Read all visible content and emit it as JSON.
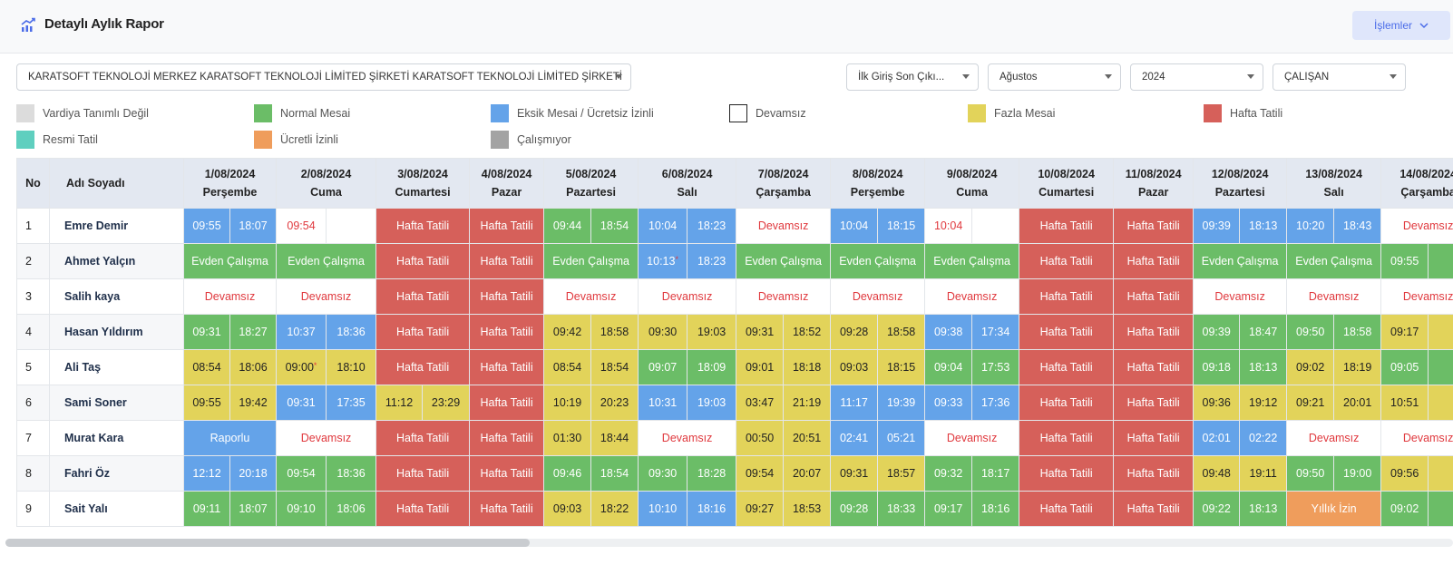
{
  "header": {
    "title": "Detaylı Aylık Rapor",
    "title_icon": "chart-line-icon",
    "actions_label": "İşlemler"
  },
  "filters": {
    "company": "KARATSOFT TEKNOLOJİ MERKEZ KARATSOFT TEKNOLOJİ LİMİTED ŞİRKETİ KARATSOFT TEKNOLOJİ LİMİTED ŞİRKETİ",
    "report_type": "İlk Giriş Son Çıkı...",
    "month": "Ağustos",
    "year": "2024",
    "employee_type": "ÇALIŞAN"
  },
  "legend": [
    {
      "label": "Vardiya Tanımlı Değil",
      "color": "#dcdcdc"
    },
    {
      "label": "Normal Mesai",
      "color": "#6bbd67"
    },
    {
      "label": "Eksik Mesai / Ücretsiz İzinli",
      "color": "#64a3e9"
    },
    {
      "label": "Devamsız",
      "color": "#ffffff"
    },
    {
      "label": "Fazla Mesai",
      "color": "#e2d35a"
    },
    {
      "label": "Hafta Tatili",
      "color": "#d6605a"
    },
    {
      "label": "Resmi Tatil",
      "color": "#5fcfbf"
    },
    {
      "label": "Ücretli İzinli",
      "color": "#ef9d5c"
    },
    {
      "label": "Çalışmıyor",
      "color": "#a3a3a3"
    }
  ],
  "table": {
    "col_no": "No",
    "col_name": "Adı Soyadı",
    "days": [
      {
        "date": "1/08/2024",
        "day": "Perşembe"
      },
      {
        "date": "2/08/2024",
        "day": "Cuma"
      },
      {
        "date": "3/08/2024",
        "day": "Cumartesi"
      },
      {
        "date": "4/08/2024",
        "day": "Pazar"
      },
      {
        "date": "5/08/2024",
        "day": "Pazartesi"
      },
      {
        "date": "6/08/2024",
        "day": "Salı"
      },
      {
        "date": "7/08/2024",
        "day": "Çarşamba"
      },
      {
        "date": "8/08/2024",
        "day": "Perşembe"
      },
      {
        "date": "9/08/2024",
        "day": "Cuma"
      },
      {
        "date": "10/08/2024",
        "day": "Cumartesi"
      },
      {
        "date": "11/08/2024",
        "day": "Pazar"
      },
      {
        "date": "12/08/2024",
        "day": "Pazartesi"
      },
      {
        "date": "13/08/2024",
        "day": "Salı"
      },
      {
        "date": "14/08/2024",
        "day": "Çarşamba"
      }
    ],
    "rows": [
      {
        "no": "1",
        "name": "Emre Demir",
        "cells": [
          {
            "s": "blue",
            "in": "09:55",
            "out": "18:07"
          },
          {
            "s": "absent",
            "in": "09:54",
            "out": ""
          },
          {
            "s": "red",
            "text": "Hafta Tatili"
          },
          {
            "s": "red",
            "text": "Hafta Tatili"
          },
          {
            "s": "green",
            "in": "09:44",
            "out": "18:54"
          },
          {
            "s": "blue",
            "in": "10:04",
            "out": "18:23"
          },
          {
            "s": "absent",
            "text": "Devamsız"
          },
          {
            "s": "blue",
            "in": "10:04",
            "out": "18:15"
          },
          {
            "s": "absent",
            "in": "10:04",
            "out": ""
          },
          {
            "s": "red",
            "text": "Hafta Tatili"
          },
          {
            "s": "red",
            "text": "Hafta Tatili"
          },
          {
            "s": "blue",
            "in": "09:39",
            "out": "18:13"
          },
          {
            "s": "blue",
            "in": "10:20",
            "out": "18:43"
          },
          {
            "s": "absent",
            "text": "Devamsız"
          }
        ]
      },
      {
        "no": "2",
        "name": "Ahmet Yalçın",
        "cells": [
          {
            "s": "green",
            "text": "Evden Çalışma"
          },
          {
            "s": "green",
            "text": "Evden Çalışma"
          },
          {
            "s": "red",
            "text": "Hafta Tatili"
          },
          {
            "s": "red",
            "text": "Hafta Tatili"
          },
          {
            "s": "green",
            "text": "Evden Çalışma"
          },
          {
            "s": "blue",
            "in": "10:13",
            "out": "18:23",
            "star": true
          },
          {
            "s": "green",
            "text": "Evden Çalışma"
          },
          {
            "s": "green",
            "text": "Evden Çalışma"
          },
          {
            "s": "green",
            "text": "Evden Çalışma"
          },
          {
            "s": "red",
            "text": "Hafta Tatili"
          },
          {
            "s": "red",
            "text": "Hafta Tatili"
          },
          {
            "s": "green",
            "text": "Evden Çalışma"
          },
          {
            "s": "green",
            "text": "Evden Çalışma"
          },
          {
            "s": "green",
            "in": "09:55",
            "out": ""
          }
        ]
      },
      {
        "no": "3",
        "name": "Salih kaya",
        "cells": [
          {
            "s": "absent",
            "text": "Devamsız"
          },
          {
            "s": "absent",
            "text": "Devamsız"
          },
          {
            "s": "red",
            "text": "Hafta Tatili"
          },
          {
            "s": "red",
            "text": "Hafta Tatili"
          },
          {
            "s": "absent",
            "text": "Devamsız"
          },
          {
            "s": "absent",
            "text": "Devamsız"
          },
          {
            "s": "absent",
            "text": "Devamsız"
          },
          {
            "s": "absent",
            "text": "Devamsız"
          },
          {
            "s": "absent",
            "text": "Devamsız"
          },
          {
            "s": "red",
            "text": "Hafta Tatili"
          },
          {
            "s": "red",
            "text": "Hafta Tatili"
          },
          {
            "s": "absent",
            "text": "Devamsız"
          },
          {
            "s": "absent",
            "text": "Devamsız"
          },
          {
            "s": "absent",
            "text": "Devamsız"
          }
        ]
      },
      {
        "no": "4",
        "name": "Hasan Yıldırım",
        "cells": [
          {
            "s": "green",
            "in": "09:31",
            "out": "18:27"
          },
          {
            "s": "blue",
            "in": "10:37",
            "out": "18:36"
          },
          {
            "s": "red",
            "text": "Hafta Tatili"
          },
          {
            "s": "red",
            "text": "Hafta Tatili"
          },
          {
            "s": "yellow",
            "in": "09:42",
            "out": "18:58"
          },
          {
            "s": "yellow",
            "in": "09:30",
            "out": "19:03"
          },
          {
            "s": "yellow",
            "in": "09:31",
            "out": "18:52"
          },
          {
            "s": "yellow",
            "in": "09:28",
            "out": "18:58"
          },
          {
            "s": "blue",
            "in": "09:38",
            "out": "17:34"
          },
          {
            "s": "red",
            "text": "Hafta Tatili"
          },
          {
            "s": "red",
            "text": "Hafta Tatili"
          },
          {
            "s": "green",
            "in": "09:39",
            "out": "18:47"
          },
          {
            "s": "green",
            "in": "09:50",
            "out": "18:58"
          },
          {
            "s": "yellow",
            "in": "09:17",
            "out": ""
          }
        ]
      },
      {
        "no": "5",
        "name": "Ali Taş",
        "cells": [
          {
            "s": "yellow",
            "in": "08:54",
            "out": "18:06"
          },
          {
            "s": "yellow",
            "in": "09:00",
            "out": "18:10",
            "star": true
          },
          {
            "s": "red",
            "text": "Hafta Tatili"
          },
          {
            "s": "red",
            "text": "Hafta Tatili"
          },
          {
            "s": "yellow",
            "in": "08:54",
            "out": "18:54"
          },
          {
            "s": "green",
            "in": "09:07",
            "out": "18:09"
          },
          {
            "s": "yellow",
            "in": "09:01",
            "out": "18:18"
          },
          {
            "s": "yellow",
            "in": "09:03",
            "out": "18:15"
          },
          {
            "s": "green",
            "in": "09:04",
            "out": "17:53"
          },
          {
            "s": "red",
            "text": "Hafta Tatili"
          },
          {
            "s": "red",
            "text": "Hafta Tatili"
          },
          {
            "s": "green",
            "in": "09:18",
            "out": "18:13"
          },
          {
            "s": "yellow",
            "in": "09:02",
            "out": "18:19"
          },
          {
            "s": "green",
            "in": "09:05",
            "out": ""
          }
        ]
      },
      {
        "no": "6",
        "name": "Sami Soner",
        "cells": [
          {
            "s": "yellow",
            "in": "09:55",
            "out": "19:42"
          },
          {
            "s": "blue",
            "in": "09:31",
            "out": "17:35"
          },
          {
            "s": "yellow",
            "in": "11:12",
            "out": "23:29"
          },
          {
            "s": "red",
            "text": "Hafta Tatili"
          },
          {
            "s": "yellow",
            "in": "10:19",
            "out": "20:23"
          },
          {
            "s": "blue",
            "in": "10:31",
            "out": "19:03"
          },
          {
            "s": "yellow",
            "in": "03:47",
            "out": "21:19"
          },
          {
            "s": "blue",
            "in": "11:17",
            "out": "19:39"
          },
          {
            "s": "blue",
            "in": "09:33",
            "out": "17:36"
          },
          {
            "s": "red",
            "text": "Hafta Tatili"
          },
          {
            "s": "red",
            "text": "Hafta Tatili"
          },
          {
            "s": "yellow",
            "in": "09:36",
            "out": "19:12"
          },
          {
            "s": "yellow",
            "in": "09:21",
            "out": "20:01"
          },
          {
            "s": "yellow",
            "in": "10:51",
            "out": ""
          }
        ]
      },
      {
        "no": "7",
        "name": "Murat Kara",
        "cells": [
          {
            "s": "blue",
            "text": "Raporlu"
          },
          {
            "s": "absent",
            "text": "Devamsız"
          },
          {
            "s": "red",
            "text": "Hafta Tatili"
          },
          {
            "s": "red",
            "text": "Hafta Tatili"
          },
          {
            "s": "yellow",
            "in": "01:30",
            "out": "18:44"
          },
          {
            "s": "absent",
            "text": "Devamsız"
          },
          {
            "s": "yellow",
            "in": "00:50",
            "out": "20:51"
          },
          {
            "s": "blue",
            "in": "02:41",
            "out": "05:21"
          },
          {
            "s": "absent",
            "text": "Devamsız"
          },
          {
            "s": "red",
            "text": "Hafta Tatili"
          },
          {
            "s": "red",
            "text": "Hafta Tatili"
          },
          {
            "s": "blue",
            "in": "02:01",
            "out": "02:22"
          },
          {
            "s": "absent",
            "text": "Devamsız"
          },
          {
            "s": "absent",
            "text": "Devamsız"
          }
        ]
      },
      {
        "no": "8",
        "name": "Fahri Öz",
        "cells": [
          {
            "s": "blue",
            "in": "12:12",
            "out": "20:18"
          },
          {
            "s": "green",
            "in": "09:54",
            "out": "18:36"
          },
          {
            "s": "red",
            "text": "Hafta Tatili"
          },
          {
            "s": "red",
            "text": "Hafta Tatili"
          },
          {
            "s": "green",
            "in": "09:46",
            "out": "18:54"
          },
          {
            "s": "green",
            "in": "09:30",
            "out": "18:28"
          },
          {
            "s": "yellow",
            "in": "09:54",
            "out": "20:07"
          },
          {
            "s": "yellow",
            "in": "09:31",
            "out": "18:57"
          },
          {
            "s": "green",
            "in": "09:32",
            "out": "18:17"
          },
          {
            "s": "red",
            "text": "Hafta Tatili"
          },
          {
            "s": "red",
            "text": "Hafta Tatili"
          },
          {
            "s": "yellow",
            "in": "09:48",
            "out": "19:11"
          },
          {
            "s": "green",
            "in": "09:50",
            "out": "19:00"
          },
          {
            "s": "yellow",
            "in": "09:56",
            "out": ""
          }
        ]
      },
      {
        "no": "9",
        "name": "Sait Yalı",
        "cells": [
          {
            "s": "green",
            "in": "09:11",
            "out": "18:07"
          },
          {
            "s": "green",
            "in": "09:10",
            "out": "18:06"
          },
          {
            "s": "red",
            "text": "Hafta Tatili"
          },
          {
            "s": "red",
            "text": "Hafta Tatili"
          },
          {
            "s": "yellow",
            "in": "09:03",
            "out": "18:22"
          },
          {
            "s": "blue",
            "in": "10:10",
            "out": "18:16"
          },
          {
            "s": "yellow",
            "in": "09:27",
            "out": "18:53"
          },
          {
            "s": "green",
            "in": "09:28",
            "out": "18:33"
          },
          {
            "s": "green",
            "in": "09:17",
            "out": "18:16"
          },
          {
            "s": "red",
            "text": "Hafta Tatili"
          },
          {
            "s": "red",
            "text": "Hafta Tatili"
          },
          {
            "s": "green",
            "in": "09:22",
            "out": "18:13"
          },
          {
            "s": "orange",
            "text": "Yıllık İzin"
          },
          {
            "s": "green",
            "in": "09:02",
            "out": ""
          }
        ]
      }
    ]
  }
}
